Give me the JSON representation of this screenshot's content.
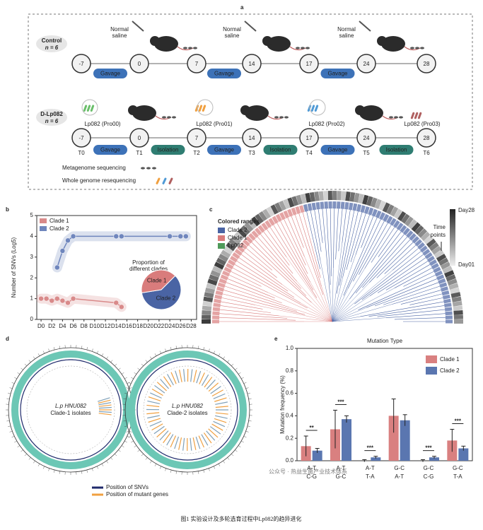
{
  "panel_a": {
    "label": "a",
    "control": {
      "name": "Control",
      "n": "n = 6",
      "injections": [
        [
          "Normal",
          "saline"
        ],
        [
          "Normal",
          "saline"
        ],
        [
          "Normal",
          "saline"
        ]
      ],
      "timepoints": [
        "-7",
        "0",
        "7",
        "14",
        "17",
        "24",
        "28"
      ],
      "gavage": [
        "Gavage",
        "Gavage",
        "Gavage"
      ]
    },
    "treatment": {
      "name": "D-Lp082",
      "n": "n = 6",
      "strains": [
        "Lp082 (Pro00)",
        "Lp082 (Pro01)",
        "Lp082 (Pro02)",
        "Lp082 (Pro03)"
      ],
      "timepoints": [
        "-7",
        "0",
        "7",
        "14",
        "17",
        "24",
        "28"
      ],
      "gavage": [
        "Gavage",
        "Gavage",
        "Gavage"
      ],
      "isolation": [
        "Isolation",
        "Isolation",
        "Isolation"
      ],
      "stages": [
        "T0",
        "T1",
        "T2",
        "T3",
        "T4",
        "T5",
        "T6"
      ]
    },
    "legend": [
      "Metagenome sequencing",
      "Whole genome resequencing"
    ]
  },
  "chart_data": [
    {
      "type": "scatter",
      "label": "b",
      "ylabel": "Number of SNVs (Log5)",
      "xlim": [
        -0.8,
        29
      ],
      "ylim": [
        0,
        5
      ],
      "xticks": [
        {
          "value": 0,
          "label": "D0"
        },
        {
          "value": 2,
          "label": "D2"
        },
        {
          "value": 4,
          "label": "D4"
        },
        {
          "value": 6,
          "label": "D6"
        },
        {
          "value": 8,
          "label": "D8"
        },
        {
          "value": 10,
          "label": "D10"
        },
        {
          "value": 12,
          "label": "D12"
        },
        {
          "value": 14,
          "label": "D14"
        },
        {
          "value": 16,
          "label": "D16"
        },
        {
          "value": 18,
          "label": "D18"
        },
        {
          "value": 20,
          "label": "D20"
        },
        {
          "value": 22,
          "label": "D22"
        },
        {
          "value": 24,
          "label": "D24"
        },
        {
          "value": 26,
          "label": "D26"
        },
        {
          "value": 28,
          "label": "D28"
        }
      ],
      "yticks": [
        0,
        1,
        2,
        3,
        4,
        5
      ],
      "series": [
        {
          "name": "Clade 1",
          "color": "#d98a8a",
          "x": [
            0,
            1,
            2,
            3,
            4,
            5,
            6,
            14,
            15
          ],
          "values": [
            1.0,
            1.0,
            0.9,
            1.0,
            0.9,
            0.8,
            1.0,
            0.8,
            0.6
          ]
        },
        {
          "name": "Clade 2",
          "color": "#6f86bd",
          "x": [
            3,
            4,
            5,
            6,
            14,
            15,
            24,
            26,
            27
          ],
          "values": [
            2.5,
            3.3,
            3.8,
            4.0,
            4.0,
            4.0,
            4.0,
            4.0,
            4.0
          ]
        }
      ],
      "inset": {
        "type": "pie",
        "title": [
          "Proportion of",
          "different clades"
        ],
        "categories": [
          "Clade 2",
          "Clade 1"
        ],
        "values": [
          60,
          40
        ],
        "colors": [
          "#4a64a4",
          "#d97c7c"
        ]
      }
    },
    {
      "type": "bar",
      "label": "e",
      "title": "Mutation Type",
      "ylabel": "Mutation frequency (%)",
      "categories": [
        [
          "A-T",
          "C-G"
        ],
        [
          "A-T",
          "G-C"
        ],
        [
          "A-T",
          "T-A"
        ],
        [
          "G-C",
          "A-T"
        ],
        [
          "G-C",
          "C-G"
        ],
        [
          "G-C",
          "T-A"
        ]
      ],
      "ylim": [
        0,
        1.0
      ],
      "yticks": [
        {
          "value": 0,
          "label": "0.0"
        },
        {
          "value": 0.2,
          "label": "0.2"
        },
        {
          "value": 0.4,
          "label": "0.4"
        },
        {
          "value": 0.6,
          "label": "0.6"
        },
        {
          "value": 0.8,
          "label": "0.8"
        },
        {
          "value": 1.0,
          "label": "1.0"
        }
      ],
      "series": [
        {
          "name": "Clade 1",
          "color": "#d98080",
          "values": [
            0.13,
            0.28,
            0.0,
            0.4,
            0.0,
            0.18
          ],
          "errors": [
            0.09,
            0.17,
            0.01,
            0.15,
            0.01,
            0.1
          ]
        },
        {
          "name": "Clade 2",
          "color": "#5a76b0",
          "values": [
            0.09,
            0.37,
            0.03,
            0.36,
            0.03,
            0.11
          ],
          "errors": [
            0.02,
            0.03,
            0.01,
            0.05,
            0.01,
            0.02
          ]
        }
      ],
      "significance": [
        "**",
        "***",
        "***",
        null,
        "***",
        "***"
      ]
    }
  ],
  "panel_c": {
    "label": "c",
    "legend_title": "Colored ranges",
    "ranges": [
      {
        "name": "Clade 2",
        "color": "#4a64a4"
      },
      {
        "name": "Clade 1",
        "color": "#d97c7c"
      },
      {
        "name": "Lp082",
        "color": "#4f9a5a"
      }
    ],
    "time_top": "Day28",
    "time_title": [
      "Time",
      "points"
    ],
    "time_bottom": "Day01"
  },
  "panel_d": {
    "label": "d",
    "circles": [
      [
        "L.p HNU082",
        "Clade-1 isolates"
      ],
      [
        "L.p HNU082",
        "Clade-2 isolates"
      ]
    ],
    "legend": [
      {
        "name": "Position of SNVs",
        "color": "#1f2a6b"
      },
      {
        "name": "Position of mutant genes",
        "color": "#f0a040"
      }
    ]
  },
  "watermark": "公众号 · 热益生菌产业技术体系",
  "caption": "图1 实验设计及多轮选育过程中Lp082的趋异进化"
}
